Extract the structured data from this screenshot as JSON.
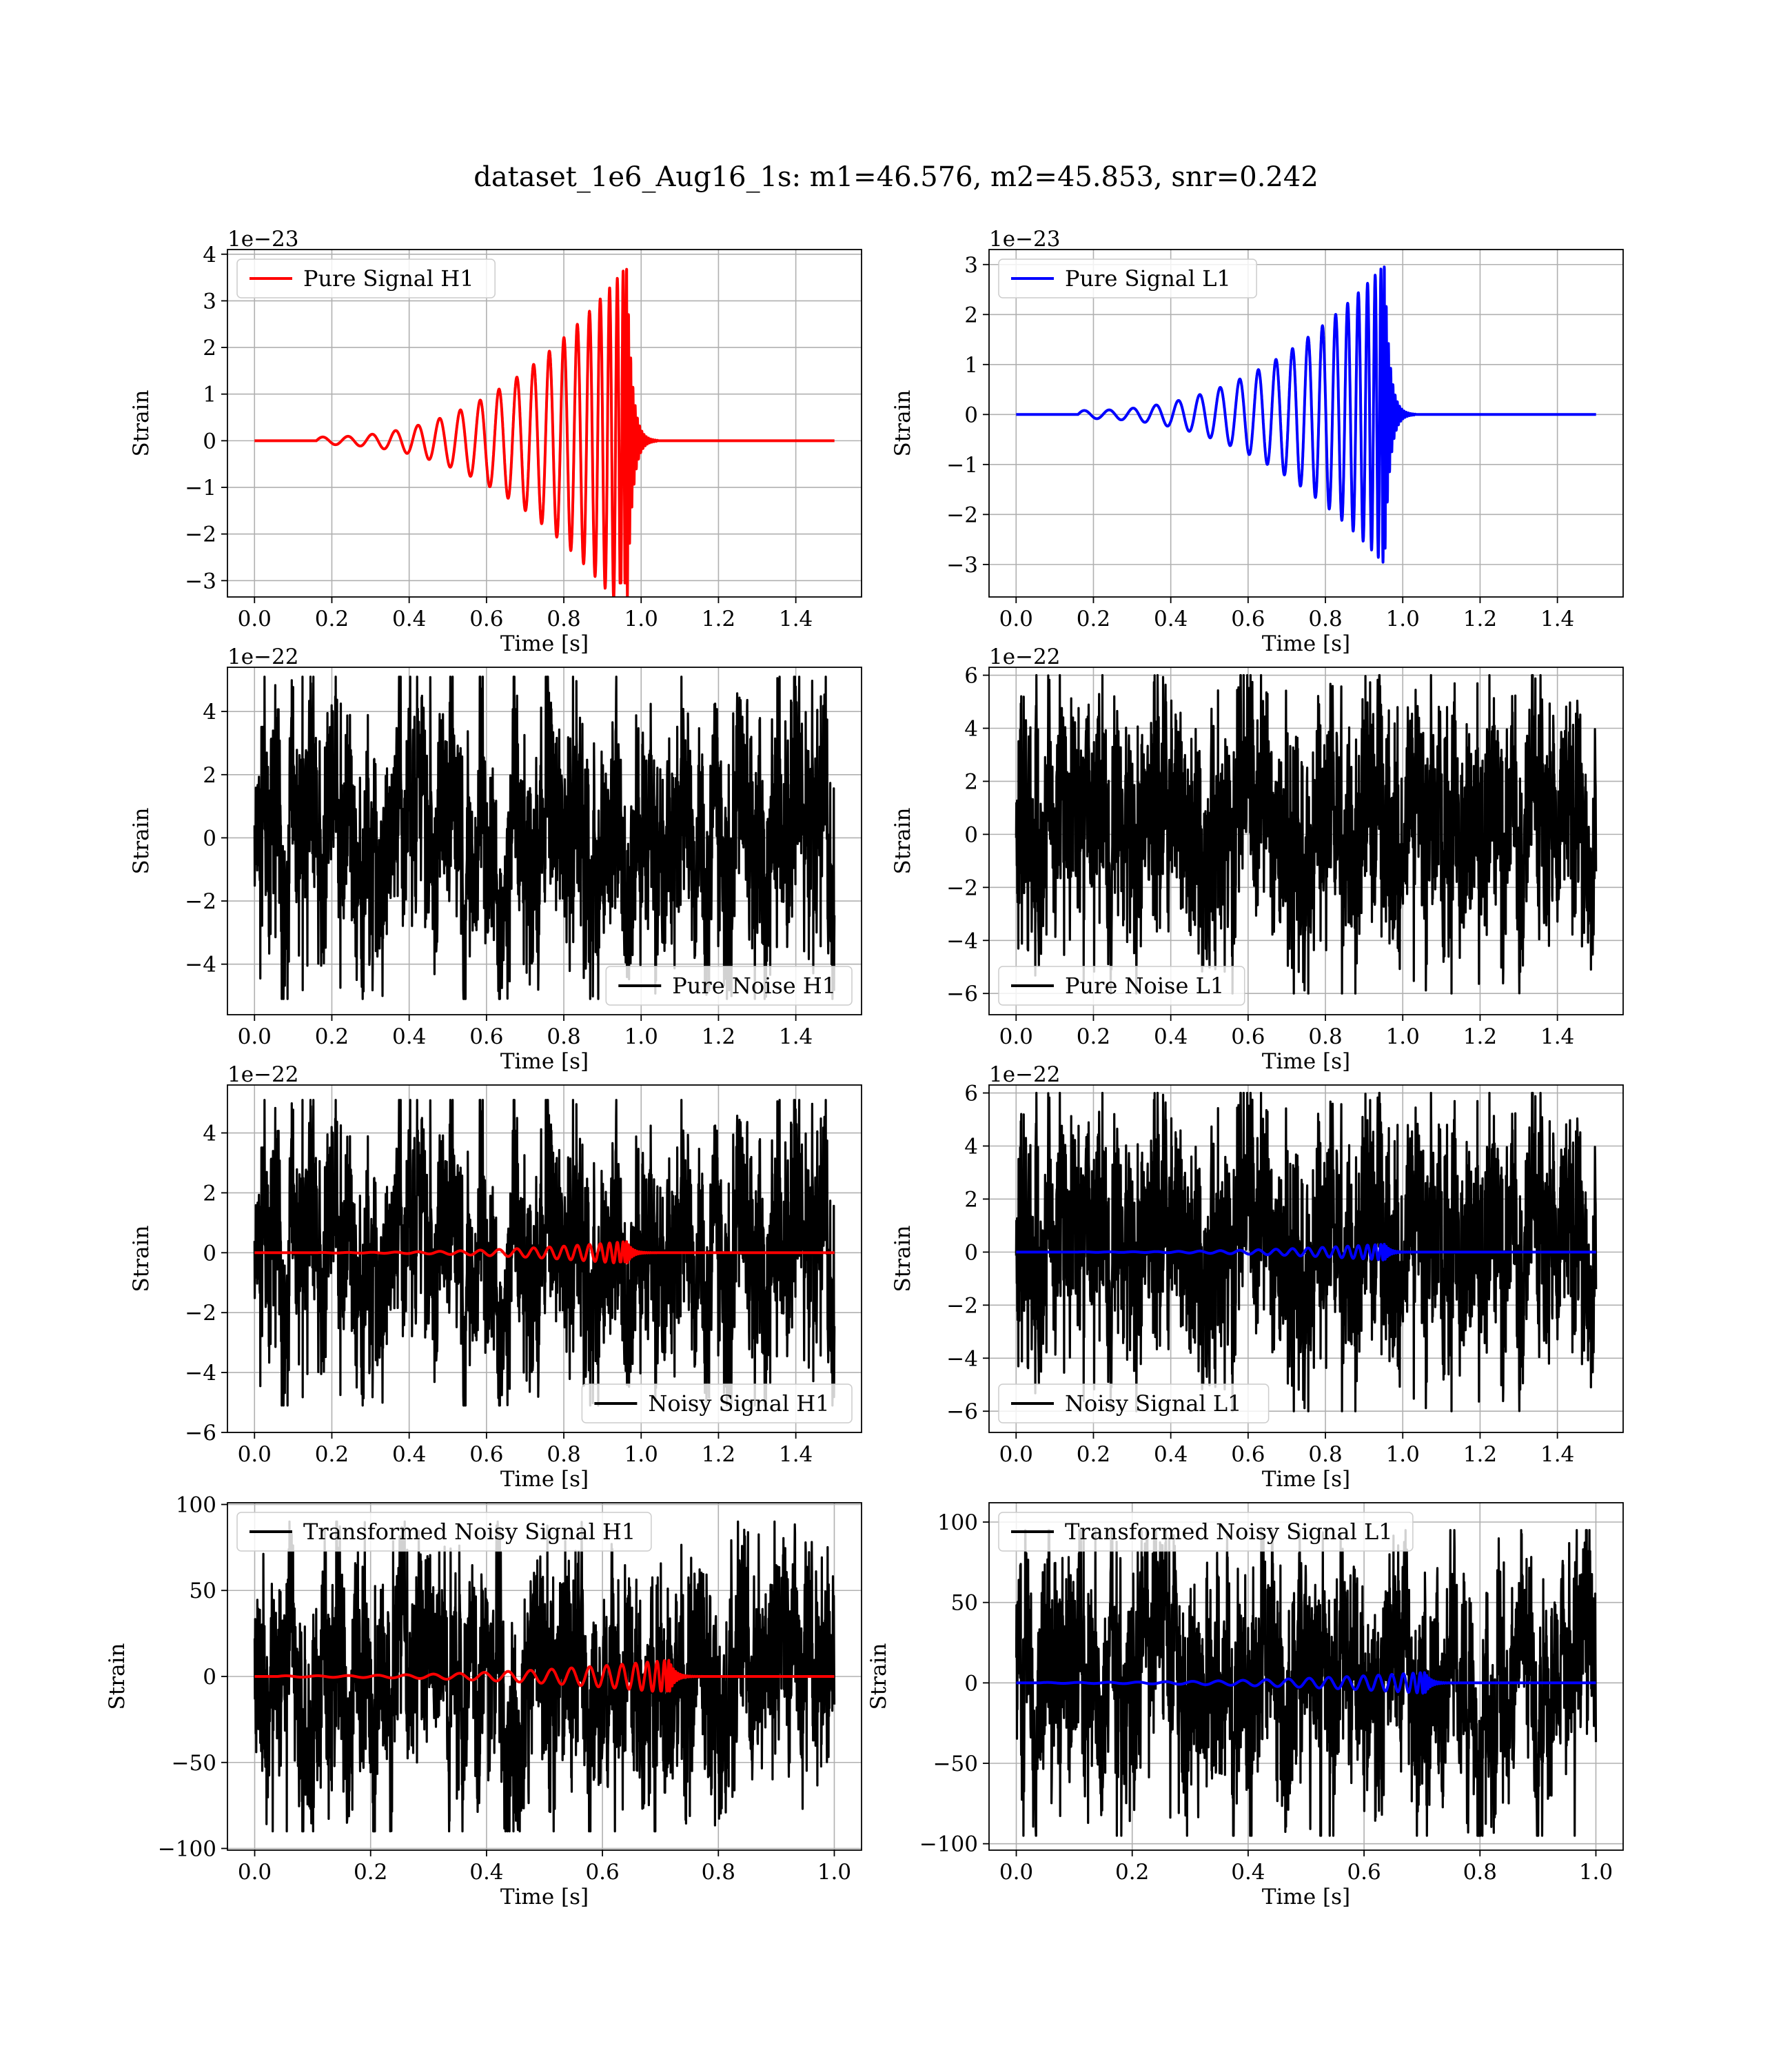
{
  "figure": {
    "title": "dataset_1e6_Aug16_1s: m1=46.576, m2=45.853, snr=0.242"
  },
  "colors": {
    "h1_signal": "#ff0000",
    "l1_signal": "#0000ff",
    "noise": "#000000",
    "grid": "#b0b0b0"
  },
  "chart_data": [
    {
      "type": "line",
      "id": "pure-signal-h1",
      "xlabel": "Time [s]",
      "ylabel": "Strain",
      "offset_text": "1e−23",
      "xlim": [
        -0.07,
        1.57
      ],
      "ylim": [
        -3.35,
        4.1
      ],
      "xticks": [
        0.0,
        0.2,
        0.4,
        0.6,
        0.8,
        1.0,
        1.2,
        1.4
      ],
      "yticks": [
        -3,
        -2,
        -1,
        0,
        1,
        2,
        3,
        4
      ],
      "legend": "top-left",
      "grid": true,
      "series": [
        {
          "name": "Pure Signal H1",
          "kind": "chirp",
          "color": "#ff0000",
          "start": 0.16,
          "merger": 0.963,
          "end": 1.5,
          "cycles": 19.5,
          "amp_start": 0.08,
          "amp_peak": 3.75,
          "amp_min": -3.05
        }
      ]
    },
    {
      "type": "line",
      "id": "pure-signal-l1",
      "xlabel": "Time [s]",
      "ylabel": "Strain",
      "offset_text": "1e−23",
      "xlim": [
        -0.07,
        1.57
      ],
      "ylim": [
        -3.65,
        3.3
      ],
      "xticks": [
        0.0,
        0.2,
        0.4,
        0.6,
        0.8,
        1.0,
        1.2,
        1.4
      ],
      "yticks": [
        -3,
        -2,
        -1,
        0,
        1,
        2,
        3
      ],
      "legend": "top-left",
      "grid": true,
      "series": [
        {
          "name": "Pure Signal L1",
          "kind": "chirp",
          "color": "#0000ff",
          "start": 0.16,
          "merger": 0.953,
          "end": 1.5,
          "cycles": 19.5,
          "amp_start": 0.08,
          "amp_peak": 3.0,
          "amp_min": -3.35
        }
      ]
    },
    {
      "type": "line",
      "id": "pure-noise-h1",
      "xlabel": "Time [s]",
      "ylabel": "Strain",
      "offset_text": "1e−22",
      "xlim": [
        -0.07,
        1.57
      ],
      "ylim": [
        -5.6,
        5.4
      ],
      "xticks": [
        0.0,
        0.2,
        0.4,
        0.6,
        0.8,
        1.0,
        1.2,
        1.4
      ],
      "yticks": [
        -4,
        -2,
        0,
        2,
        4
      ],
      "legend": "bottom-right",
      "grid": true,
      "series": [
        {
          "name": "Pure Noise H1",
          "kind": "noise",
          "color": "#000000",
          "start": 0.0,
          "end": 1.5,
          "amp": 5.1,
          "seed": 11
        }
      ]
    },
    {
      "type": "line",
      "id": "pure-noise-l1",
      "xlabel": "Time [s]",
      "ylabel": "Strain",
      "offset_text": "1e−22",
      "xlim": [
        -0.07,
        1.57
      ],
      "ylim": [
        -6.8,
        6.3
      ],
      "xticks": [
        0.0,
        0.2,
        0.4,
        0.6,
        0.8,
        1.0,
        1.2,
        1.4
      ],
      "yticks": [
        -6,
        -4,
        -2,
        0,
        2,
        4,
        6
      ],
      "legend": "bottom-left",
      "grid": true,
      "series": [
        {
          "name": "Pure Noise L1",
          "kind": "noise",
          "color": "#000000",
          "start": 0.0,
          "end": 1.5,
          "amp": 6.0,
          "seed": 23
        }
      ]
    },
    {
      "type": "line",
      "id": "noisy-signal-h1",
      "xlabel": "Time [s]",
      "ylabel": "Strain",
      "offset_text": "1e−22",
      "xlim": [
        -0.07,
        1.57
      ],
      "ylim": [
        -6.0,
        5.6
      ],
      "xticks": [
        0.0,
        0.2,
        0.4,
        0.6,
        0.8,
        1.0,
        1.2,
        1.4
      ],
      "yticks": [
        -6,
        -4,
        -2,
        0,
        2,
        4
      ],
      "legend": "bottom-right",
      "grid": true,
      "series": [
        {
          "name": "Noisy Signal H1",
          "kind": "noise",
          "color": "#000000",
          "start": 0.0,
          "end": 1.5,
          "amp": 5.1,
          "seed": 11
        },
        {
          "name": "",
          "kind": "chirp",
          "color": "#ff0000",
          "start": 0.16,
          "merger": 0.963,
          "end": 1.5,
          "cycles": 19.5,
          "amp_start": 0.008,
          "amp_peak": 0.375,
          "amp_min": -0.305
        }
      ]
    },
    {
      "type": "line",
      "id": "noisy-signal-l1",
      "xlabel": "Time [s]",
      "ylabel": "Strain",
      "offset_text": "1e−22",
      "xlim": [
        -0.07,
        1.57
      ],
      "ylim": [
        -6.8,
        6.3
      ],
      "xticks": [
        0.0,
        0.2,
        0.4,
        0.6,
        0.8,
        1.0,
        1.2,
        1.4
      ],
      "yticks": [
        -6,
        -4,
        -2,
        0,
        2,
        4,
        6
      ],
      "legend": "bottom-left",
      "grid": true,
      "series": [
        {
          "name": "Noisy Signal L1",
          "kind": "noise",
          "color": "#000000",
          "start": 0.0,
          "end": 1.5,
          "amp": 6.0,
          "seed": 23
        },
        {
          "name": "",
          "kind": "chirp",
          "color": "#0000ff",
          "start": 0.16,
          "merger": 0.953,
          "end": 1.5,
          "cycles": 19.5,
          "amp_start": 0.008,
          "amp_peak": 0.3,
          "amp_min": -0.335
        }
      ]
    },
    {
      "type": "line",
      "id": "transformed-noisy-signal-h1",
      "xlabel": "Time [s]",
      "ylabel": "Strain",
      "offset_text": "",
      "xlim": [
        -0.047,
        1.047
      ],
      "ylim": [
        -101,
        101
      ],
      "xticks": [
        0.0,
        0.2,
        0.4,
        0.6,
        0.8,
        1.0
      ],
      "yticks": [
        -100,
        -50,
        0,
        50,
        100
      ],
      "legend": "top-left",
      "grid": true,
      "series": [
        {
          "name": "Transformed Noisy Signal H1",
          "kind": "noise",
          "color": "#000000",
          "start": 0.0,
          "end": 1.0,
          "amp": 90,
          "seed": 37
        },
        {
          "name": "",
          "kind": "chirp",
          "color": "#ff0000",
          "start": 0.04,
          "merger": 0.715,
          "end": 1.0,
          "cycles": 19.5,
          "amp_start": 0.4,
          "amp_peak": 9.5,
          "amp_min": -8.5
        }
      ]
    },
    {
      "type": "line",
      "id": "transformed-noisy-signal-l1",
      "xlabel": "Time [s]",
      "ylabel": "Strain",
      "offset_text": "",
      "xlim": [
        -0.047,
        1.047
      ],
      "ylim": [
        -104,
        112
      ],
      "xticks": [
        0.0,
        0.2,
        0.4,
        0.6,
        0.8,
        1.0
      ],
      "yticks": [
        -100,
        -50,
        0,
        50,
        100
      ],
      "legend": "top-left",
      "grid": true,
      "series": [
        {
          "name": "Transformed Noisy Signal L1",
          "kind": "noise",
          "color": "#000000",
          "start": 0.0,
          "end": 1.0,
          "amp": 95,
          "seed": 53
        },
        {
          "name": "",
          "kind": "chirp",
          "color": "#0000ff",
          "start": 0.04,
          "merger": 0.705,
          "end": 1.0,
          "cycles": 19.5,
          "amp_start": 0.3,
          "amp_peak": 6.5,
          "amp_min": -6.5
        }
      ]
    }
  ]
}
